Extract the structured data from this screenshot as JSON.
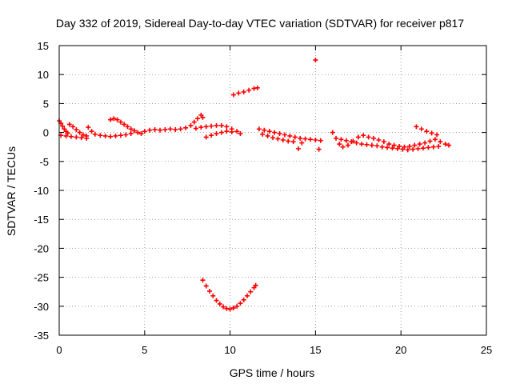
{
  "chart_data": {
    "type": "scatter",
    "title": "Day 332 of 2019, Sidereal Day-to-day VTEC variation (SDTVAR) for receiver p817",
    "xlabel": "GPS time / hours",
    "ylabel": "SDTVAR / TECUs",
    "xlim": [
      0,
      25
    ],
    "ylim": [
      -35,
      15
    ],
    "xticks": [
      0,
      5,
      10,
      15,
      20,
      25
    ],
    "yticks": [
      15,
      10,
      5,
      0,
      -5,
      -10,
      -15,
      -20,
      -25,
      -30,
      -35
    ],
    "grid": true,
    "legend": "none",
    "marker": "plus",
    "marker_color": "#ff0000",
    "series": [
      {
        "values": [
          [
            0.0,
            2.0
          ],
          [
            0.1,
            1.6
          ],
          [
            0.2,
            1.1
          ],
          [
            0.3,
            0.6
          ],
          [
            0.4,
            0.2
          ],
          [
            0.5,
            -0.1
          ],
          [
            0.6,
            1.4
          ],
          [
            0.8,
            1.0
          ],
          [
            1.0,
            0.5
          ],
          [
            1.2,
            0.0
          ],
          [
            1.4,
            -0.4
          ],
          [
            1.6,
            -0.6
          ],
          [
            0.1,
            -0.5
          ],
          [
            0.4,
            -0.6
          ],
          [
            0.7,
            -0.7
          ],
          [
            1.0,
            -0.8
          ],
          [
            1.3,
            -0.9
          ],
          [
            1.6,
            -1.0
          ],
          [
            1.7,
            0.9
          ],
          [
            1.9,
            0.2
          ],
          [
            2.1,
            -0.3
          ],
          [
            2.4,
            -0.5
          ],
          [
            2.7,
            -0.6
          ],
          [
            3.0,
            -0.7
          ],
          [
            3.3,
            -0.6
          ],
          [
            3.6,
            -0.5
          ],
          [
            3.9,
            -0.4
          ],
          [
            4.2,
            -0.2
          ],
          [
            3.0,
            2.2
          ],
          [
            3.2,
            2.4
          ],
          [
            3.4,
            2.2
          ],
          [
            3.6,
            1.8
          ],
          [
            3.8,
            1.4
          ],
          [
            4.0,
            1.0
          ],
          [
            4.2,
            0.6
          ],
          [
            4.4,
            0.3
          ],
          [
            4.6,
            0.0
          ],
          [
            4.8,
            -0.2
          ],
          [
            5.0,
            0.2
          ],
          [
            5.3,
            0.4
          ],
          [
            5.6,
            0.5
          ],
          [
            5.9,
            0.4
          ],
          [
            6.2,
            0.5
          ],
          [
            6.5,
            0.6
          ],
          [
            6.8,
            0.5
          ],
          [
            7.1,
            0.6
          ],
          [
            7.4,
            0.8
          ],
          [
            7.7,
            1.2
          ],
          [
            7.9,
            1.8
          ],
          [
            8.1,
            2.4
          ],
          [
            8.3,
            3.0
          ],
          [
            8.4,
            2.6
          ],
          [
            8.0,
            0.7
          ],
          [
            8.3,
            0.9
          ],
          [
            8.6,
            1.0
          ],
          [
            8.9,
            1.1
          ],
          [
            9.2,
            1.2
          ],
          [
            9.5,
            1.2
          ],
          [
            9.8,
            1.0
          ],
          [
            10.1,
            0.6
          ],
          [
            10.4,
            0.2
          ],
          [
            10.6,
            -0.2
          ],
          [
            8.6,
            -0.8
          ],
          [
            8.9,
            -0.5
          ],
          [
            9.2,
            -0.2
          ],
          [
            9.5,
            0.0
          ],
          [
            9.8,
            0.2
          ],
          [
            10.1,
            0.1
          ],
          [
            10.2,
            6.5
          ],
          [
            10.5,
            6.8
          ],
          [
            10.8,
            7.0
          ],
          [
            11.1,
            7.3
          ],
          [
            11.4,
            7.6
          ],
          [
            11.6,
            7.7
          ],
          [
            11.7,
            0.6
          ],
          [
            12.0,
            0.4
          ],
          [
            12.3,
            0.2
          ],
          [
            12.6,
            0.0
          ],
          [
            12.9,
            -0.2
          ],
          [
            13.2,
            -0.4
          ],
          [
            13.5,
            -0.6
          ],
          [
            13.8,
            -0.8
          ],
          [
            14.1,
            -1.0
          ],
          [
            14.4,
            -1.1
          ],
          [
            14.7,
            -1.2
          ],
          [
            15.0,
            -1.3
          ],
          [
            15.3,
            -1.4
          ],
          [
            11.9,
            -0.3
          ],
          [
            12.2,
            -0.6
          ],
          [
            12.5,
            -0.9
          ],
          [
            12.8,
            -1.1
          ],
          [
            13.1,
            -1.3
          ],
          [
            13.4,
            -1.5
          ],
          [
            13.7,
            -1.6
          ],
          [
            14.0,
            -2.8
          ],
          [
            14.2,
            -1.8
          ],
          [
            15.0,
            12.5
          ],
          [
            15.2,
            -2.9
          ],
          [
            16.0,
            0.0
          ],
          [
            16.2,
            -1.0
          ],
          [
            16.4,
            -2.0
          ],
          [
            16.6,
            -2.5
          ],
          [
            16.9,
            -2.2
          ],
          [
            17.2,
            -1.5
          ],
          [
            17.5,
            -0.8
          ],
          [
            17.8,
            -0.5
          ],
          [
            18.1,
            -0.8
          ],
          [
            18.4,
            -1.0
          ],
          [
            18.7,
            -1.3
          ],
          [
            19.0,
            -1.6
          ],
          [
            19.3,
            -2.0
          ],
          [
            19.6,
            -2.2
          ],
          [
            19.9,
            -2.4
          ],
          [
            20.2,
            -2.5
          ],
          [
            20.5,
            -2.4
          ],
          [
            20.8,
            -2.2
          ],
          [
            21.1,
            -2.0
          ],
          [
            21.4,
            -1.8
          ],
          [
            21.7,
            -1.5
          ],
          [
            22.0,
            -1.2
          ],
          [
            22.3,
            -1.6
          ],
          [
            22.6,
            -2.0
          ],
          [
            22.8,
            -2.2
          ],
          [
            16.5,
            -1.2
          ],
          [
            16.8,
            -1.4
          ],
          [
            17.1,
            -1.6
          ],
          [
            17.4,
            -1.8
          ],
          [
            17.7,
            -2.0
          ],
          [
            18.0,
            -2.1
          ],
          [
            18.3,
            -2.2
          ],
          [
            18.6,
            -2.3
          ],
          [
            18.9,
            -2.5
          ],
          [
            19.2,
            -2.6
          ],
          [
            19.5,
            -2.7
          ],
          [
            19.8,
            -2.8
          ],
          [
            20.1,
            -2.9
          ],
          [
            20.4,
            -3.0
          ],
          [
            20.7,
            -2.9
          ],
          [
            21.0,
            -2.8
          ],
          [
            21.3,
            -2.7
          ],
          [
            21.6,
            -2.6
          ],
          [
            21.9,
            -2.5
          ],
          [
            22.2,
            -2.4
          ],
          [
            20.9,
            1.0
          ],
          [
            21.2,
            0.6
          ],
          [
            21.5,
            0.2
          ],
          [
            21.8,
            -0.1
          ],
          [
            22.1,
            -0.4
          ],
          [
            8.4,
            -25.5
          ],
          [
            8.6,
            -26.5
          ],
          [
            8.8,
            -27.4
          ],
          [
            9.0,
            -28.2
          ],
          [
            9.2,
            -29.0
          ],
          [
            9.4,
            -29.6
          ],
          [
            9.6,
            -30.1
          ],
          [
            9.8,
            -30.4
          ],
          [
            10.0,
            -30.5
          ],
          [
            10.2,
            -30.3
          ],
          [
            10.4,
            -30.0
          ],
          [
            10.6,
            -29.5
          ],
          [
            10.8,
            -28.9
          ],
          [
            11.0,
            -28.2
          ],
          [
            11.2,
            -27.5
          ],
          [
            11.4,
            -26.8
          ],
          [
            11.5,
            -26.4
          ]
        ]
      }
    ]
  }
}
